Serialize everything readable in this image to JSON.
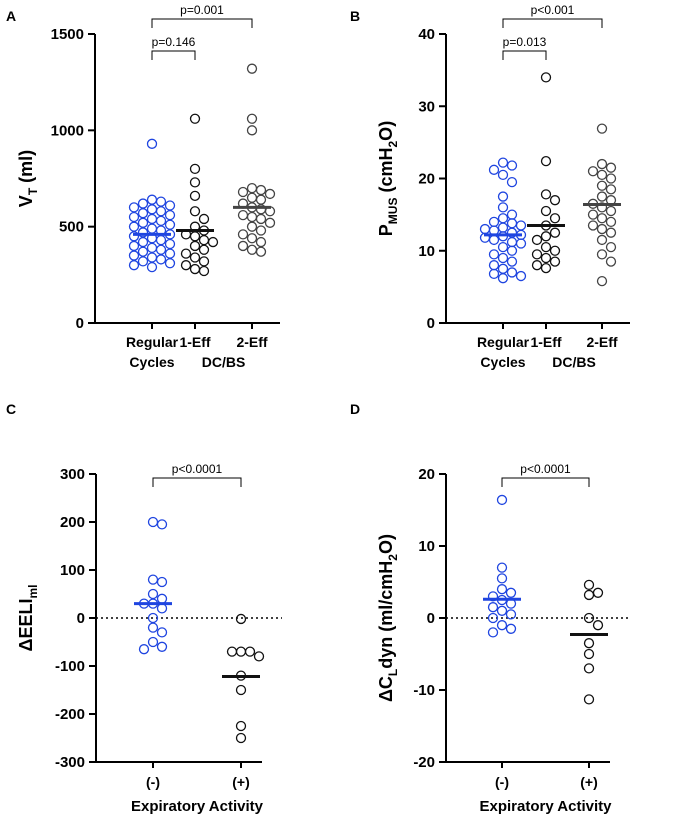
{
  "colors": {
    "blue": "#1f45e0",
    "black": "#111111",
    "gray": "#444444"
  },
  "chart_data": [
    {
      "panel": "A",
      "type": "scatter",
      "ylabel": {
        "main": "V",
        "sub": "T",
        "rest": " (ml)"
      },
      "yticks": [
        0,
        500,
        1000,
        1500
      ],
      "ylim": [
        0,
        1500
      ],
      "categories": [
        {
          "line1": "Regular",
          "line2": "Cycles"
        },
        {
          "line1": "1-Eff",
          "line2": ""
        },
        {
          "line1": "2-Eff",
          "line2": ""
        }
      ],
      "group_label": "DC/BS",
      "series": [
        {
          "name": "Regular Cycles",
          "color": "blue",
          "mean": 460,
          "values": [
            930,
            640,
            630,
            620,
            610,
            600,
            590,
            580,
            570,
            560,
            550,
            540,
            530,
            520,
            510,
            500,
            490,
            480,
            470,
            460,
            450,
            440,
            430,
            420,
            410,
            400,
            390,
            380,
            370,
            360,
            350,
            340,
            330,
            320,
            310,
            300,
            290
          ]
        },
        {
          "name": "1-Eff",
          "color": "black",
          "mean": 480,
          "values": [
            1060,
            800,
            730,
            660,
            580,
            540,
            500,
            480,
            460,
            450,
            430,
            420,
            400,
            380,
            360,
            340,
            320,
            300,
            280,
            270
          ]
        },
        {
          "name": "2-Eff",
          "color": "gray",
          "mean": 600,
          "values": [
            1320,
            1060,
            1000,
            700,
            690,
            680,
            670,
            650,
            640,
            620,
            600,
            590,
            580,
            560,
            550,
            540,
            520,
            500,
            480,
            460,
            440,
            420,
            400,
            380,
            370
          ]
        }
      ],
      "brackets": [
        {
          "from": 0,
          "to": 1,
          "label": "p=0.146"
        },
        {
          "from": 0,
          "to": 2,
          "label": "p=0.001"
        }
      ]
    },
    {
      "panel": "B",
      "type": "scatter",
      "ylabel": {
        "main": "P",
        "sub": "MUS",
        "rest": " (cmH",
        "sub2": "2",
        "rest2": "O)"
      },
      "yticks": [
        0,
        10,
        20,
        30,
        40
      ],
      "ylim": [
        0,
        40
      ],
      "categories": [
        {
          "line1": "Regular",
          "line2": "Cycles"
        },
        {
          "line1": "1-Eff",
          "line2": ""
        },
        {
          "line1": "2-Eff",
          "line2": ""
        }
      ],
      "group_label": "DC/BS",
      "series": [
        {
          "name": "Regular Cycles",
          "color": "blue",
          "mean": 12.2,
          "values": [
            22.2,
            21.8,
            21.2,
            20.5,
            19.5,
            17.5,
            16.0,
            15.0,
            14.5,
            14.0,
            13.8,
            13.5,
            13.2,
            13.0,
            12.8,
            12.5,
            12.2,
            12.0,
            11.8,
            11.5,
            11.2,
            11.0,
            10.5,
            10.0,
            9.5,
            9.0,
            8.5,
            8.0,
            7.5,
            7.0,
            6.8,
            6.5,
            6.2
          ]
        },
        {
          "name": "1-Eff",
          "color": "black",
          "mean": 13.5,
          "values": [
            34.0,
            22.4,
            17.8,
            17.0,
            15.5,
            14.5,
            13.5,
            12.5,
            12.0,
            11.5,
            10.5,
            10.0,
            9.5,
            9.0,
            8.5,
            8.0,
            7.6
          ]
        },
        {
          "name": "2-Eff",
          "color": "gray",
          "mean": 16.4,
          "values": [
            26.9,
            22.0,
            21.5,
            21.0,
            20.5,
            20.0,
            19.0,
            18.5,
            17.5,
            17.0,
            16.5,
            16.0,
            15.5,
            15.0,
            14.5,
            14.0,
            13.5,
            13.0,
            12.5,
            11.5,
            10.5,
            9.5,
            8.5,
            5.8
          ]
        }
      ],
      "brackets": [
        {
          "from": 0,
          "to": 1,
          "label": "p=0.013"
        },
        {
          "from": 0,
          "to": 2,
          "label": "p<0.001"
        }
      ]
    },
    {
      "panel": "C",
      "type": "scatter",
      "ylabel": {
        "main": "ΔEELI",
        "sub": "ml",
        "rest": ""
      },
      "yticks": [
        -300,
        -200,
        -100,
        0,
        100,
        200,
        300
      ],
      "ylim": [
        -300,
        300
      ],
      "zero_line": true,
      "categories": [
        {
          "line1": "(-)",
          "line2": ""
        },
        {
          "line1": "(+)",
          "line2": ""
        }
      ],
      "xlabel": "Expiratory Activity",
      "series": [
        {
          "name": "(-)",
          "color": "blue",
          "mean": 30,
          "values": [
            200,
            195,
            80,
            75,
            50,
            40,
            30,
            30,
            20,
            0,
            -20,
            -30,
            -50,
            -60,
            -65
          ]
        },
        {
          "name": "(+)",
          "color": "black",
          "mean": -122,
          "values": [
            -2,
            -70,
            -70,
            -70,
            -80,
            -120,
            -150,
            -225,
            -250
          ]
        }
      ],
      "brackets": [
        {
          "from": 0,
          "to": 1,
          "label": "p<0.0001"
        }
      ]
    },
    {
      "panel": "D",
      "type": "scatter",
      "ylabel": {
        "main": "ΔC",
        "sub": "L",
        "rest": "dyn (ml/cmH",
        "sub2": "2",
        "rest2": "O)"
      },
      "yticks": [
        -20,
        -10,
        0,
        10,
        20
      ],
      "ylim": [
        -20,
        20
      ],
      "zero_line": true,
      "categories": [
        {
          "line1": "(-)",
          "line2": ""
        },
        {
          "line1": "(+)",
          "line2": ""
        }
      ],
      "xlabel": "Expiratory Activity",
      "series": [
        {
          "name": "(-)",
          "color": "blue",
          "mean": 2.6,
          "values": [
            16.4,
            7.0,
            5.5,
            4.0,
            3.5,
            3.0,
            2.5,
            2.0,
            1.5,
            1.0,
            0.5,
            0.0,
            -1.0,
            -1.5,
            -2.0
          ]
        },
        {
          "name": "(+)",
          "color": "black",
          "mean": -2.3,
          "values": [
            4.6,
            3.5,
            3.2,
            0.0,
            -1.0,
            -3.5,
            -5.0,
            -7.0,
            -11.3
          ]
        }
      ],
      "brackets": [
        {
          "from": 0,
          "to": 1,
          "label": "p<0.0001"
        }
      ]
    }
  ]
}
